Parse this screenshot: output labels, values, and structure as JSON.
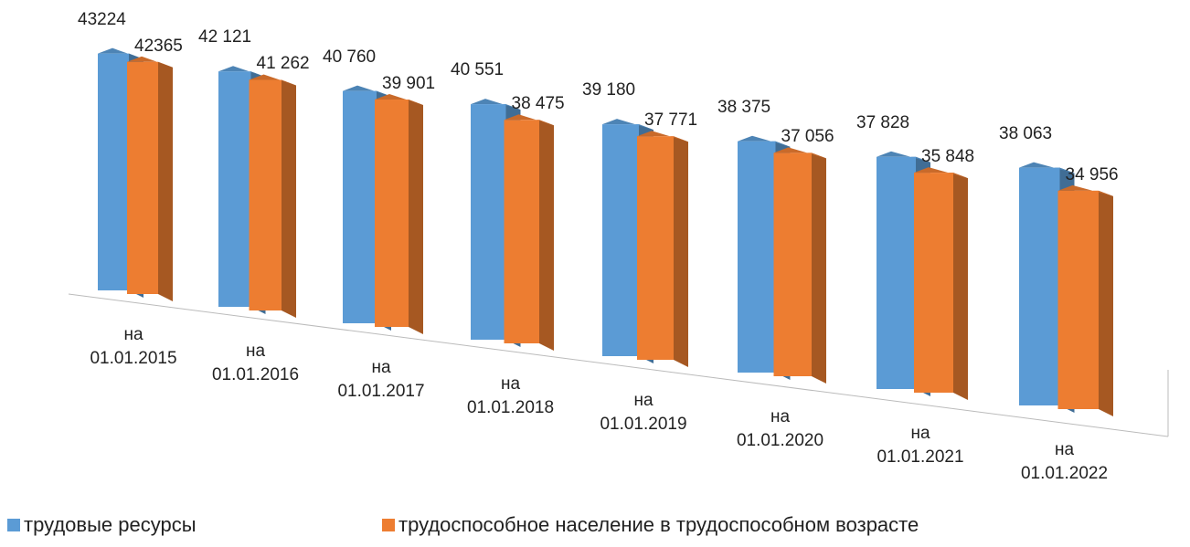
{
  "chart_data": {
    "type": "bar3d",
    "categories": [
      "на 01.01.2015",
      "на 01.01.2016",
      "на 01.01.2017",
      "на 01.01.2018",
      "на 01.01.2019",
      "на 01.01.2020",
      "на 01.01.2021",
      "на 01.01.2022"
    ],
    "series": [
      {
        "name": "трудовые ресурсы",
        "color": "#5b9bd5",
        "values": [
          43224,
          42121,
          40760,
          40551,
          39180,
          38375,
          37828,
          38063
        ],
        "value_labels": [
          "43224",
          "42 121",
          "40 760",
          "40 551",
          "39 180",
          "38 375",
          "37 828",
          "38 063"
        ]
      },
      {
        "name": "трудоспособное население в трудоспособном возрасте",
        "color": "#ed7d31",
        "values": [
          42365,
          41262,
          39901,
          38475,
          37771,
          37056,
          35848,
          34956
        ],
        "value_labels": [
          "42365",
          "41 262",
          "39 901",
          "38 475",
          "37 771",
          "37 056",
          "35 848",
          "34 956"
        ]
      }
    ],
    "ylim": [
      0,
      45000
    ],
    "legend": "bottom"
  }
}
